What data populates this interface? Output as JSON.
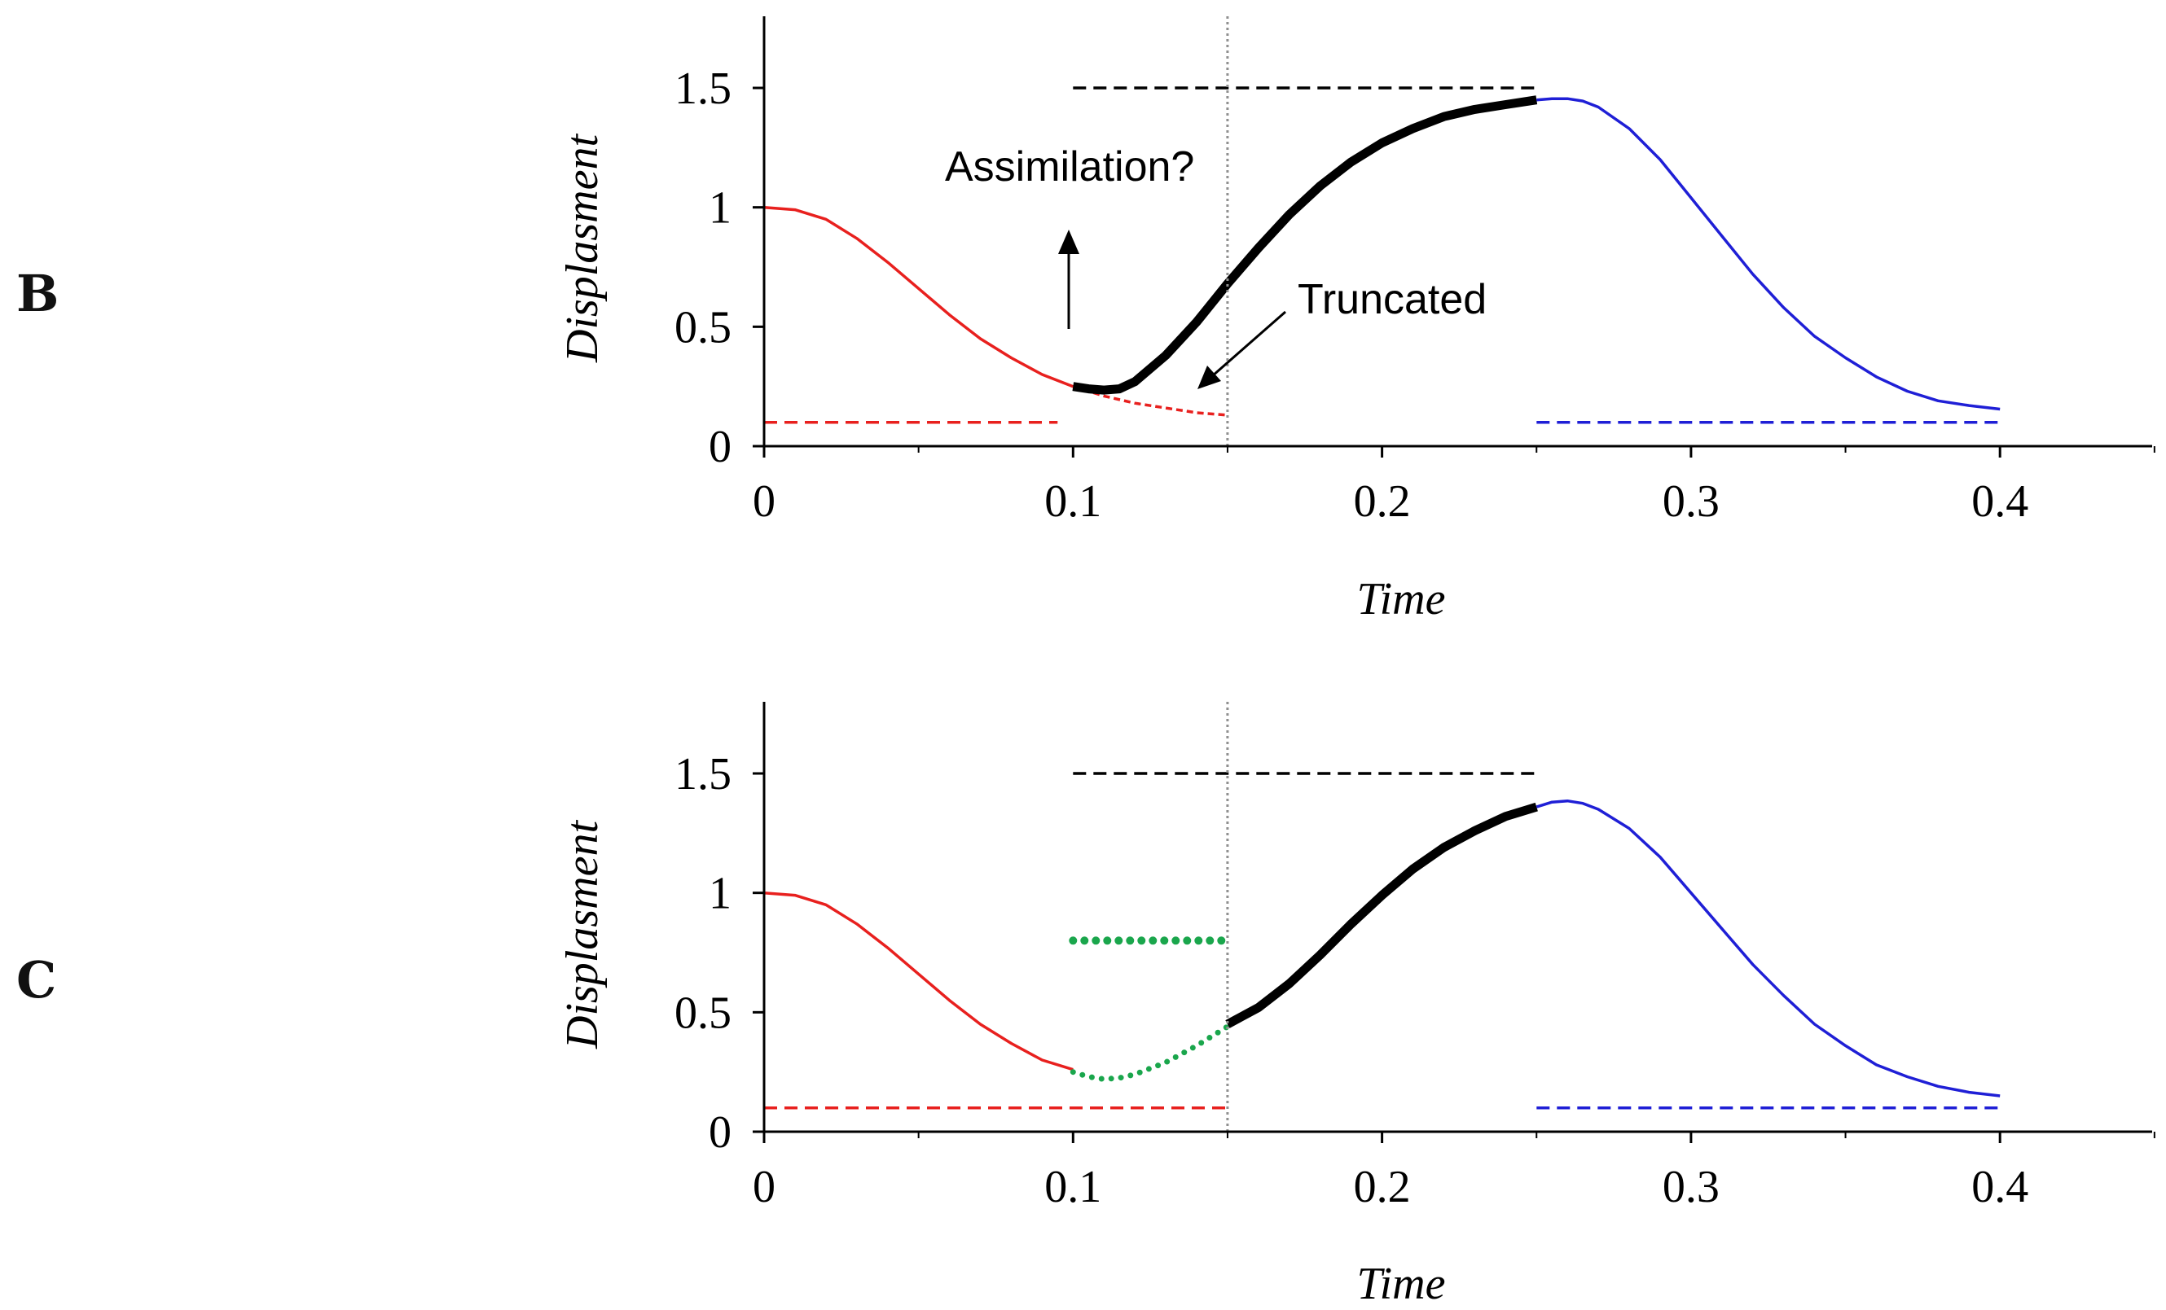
{
  "chart_data": [
    {
      "panel": "B",
      "type": "line",
      "xlabel": "Time",
      "ylabel": "Displasment",
      "xlim": [
        0,
        0.45
      ],
      "ylim": [
        0,
        1.8
      ],
      "xticks": [
        "0",
        "0.1",
        "0.2",
        "0.3",
        "0.4"
      ],
      "yticks": [
        "0",
        "0.5",
        "1",
        "1.5"
      ],
      "series": [
        {
          "style": "solid",
          "color": "#e8201e",
          "x": [
            0,
            0.01,
            0.02,
            0.03,
            0.04,
            0.05,
            0.06,
            0.07,
            0.08,
            0.09,
            0.1
          ],
          "y": [
            1.0,
            0.99,
            0.95,
            0.87,
            0.77,
            0.66,
            0.55,
            0.45,
            0.37,
            0.3,
            0.25
          ]
        },
        {
          "style": "dashed",
          "color": "#e8201e",
          "x": [
            0.1,
            0.11,
            0.12,
            0.13,
            0.14,
            0.15
          ],
          "y": [
            0.25,
            0.21,
            0.18,
            0.16,
            0.14,
            0.13
          ]
        },
        {
          "style": "thick",
          "color": "#000000",
          "x": [
            0.1,
            0.105,
            0.11,
            0.115,
            0.12,
            0.13,
            0.14,
            0.15,
            0.16,
            0.17,
            0.18,
            0.19,
            0.2,
            0.21,
            0.22,
            0.23,
            0.24,
            0.25
          ],
          "y": [
            0.25,
            0.24,
            0.235,
            0.24,
            0.27,
            0.38,
            0.52,
            0.68,
            0.83,
            0.97,
            1.09,
            1.19,
            1.27,
            1.33,
            1.38,
            1.41,
            1.43,
            1.45
          ]
        },
        {
          "style": "solid",
          "color": "#1f1fd6",
          "x": [
            0.25,
            0.255,
            0.26,
            0.265,
            0.27,
            0.28,
            0.29,
            0.3,
            0.31,
            0.32,
            0.33,
            0.34,
            0.35,
            0.36,
            0.37,
            0.38,
            0.39,
            0.4
          ],
          "y": [
            1.45,
            1.455,
            1.455,
            1.445,
            1.42,
            1.33,
            1.2,
            1.04,
            0.88,
            0.72,
            0.58,
            0.46,
            0.37,
            0.29,
            0.23,
            0.19,
            0.17,
            0.155
          ]
        },
        {
          "style": "hline-dashed",
          "color": "#e8201e",
          "x": [
            0,
            0.095
          ],
          "y": [
            0.1,
            0.1
          ]
        },
        {
          "style": "hline-dashed",
          "color": "#1f1fd6",
          "x": [
            0.25,
            0.4
          ],
          "y": [
            0.1,
            0.1
          ]
        },
        {
          "style": "hline-dashed",
          "color": "#000000",
          "x": [
            0.1,
            0.25
          ],
          "y": [
            1.5,
            1.5
          ]
        },
        {
          "style": "vline-dotted",
          "color": "#909090",
          "x": [
            0.15,
            0.15
          ],
          "y": [
            0,
            1.8
          ]
        }
      ],
      "annotations": [
        {
          "text": "Assimilation?",
          "x": 0.1,
          "y": 1.18
        },
        {
          "text": "Truncated",
          "x": 0.175,
          "y": 0.6
        }
      ]
    },
    {
      "panel": "C",
      "type": "line",
      "xlabel": "Time",
      "ylabel": "Displasment",
      "xlim": [
        0,
        0.45
      ],
      "ylim": [
        0,
        1.8
      ],
      "xticks": [
        "0",
        "0.1",
        "0.2",
        "0.3",
        "0.4"
      ],
      "yticks": [
        "0",
        "0.5",
        "1",
        "1.5"
      ],
      "series": [
        {
          "style": "solid",
          "color": "#e8201e",
          "x": [
            0,
            0.01,
            0.02,
            0.03,
            0.04,
            0.05,
            0.06,
            0.07,
            0.08,
            0.09,
            0.1
          ],
          "y": [
            1.0,
            0.99,
            0.95,
            0.87,
            0.77,
            0.66,
            0.55,
            0.45,
            0.37,
            0.3,
            0.26
          ]
        },
        {
          "style": "dotted",
          "color": "#1aa64c",
          "x": [
            0.1,
            0.105,
            0.11,
            0.115,
            0.12,
            0.13,
            0.14,
            0.15
          ],
          "y": [
            0.25,
            0.23,
            0.22,
            0.225,
            0.24,
            0.29,
            0.36,
            0.44
          ]
        },
        {
          "style": "thick",
          "color": "#000000",
          "x": [
            0.15,
            0.16,
            0.17,
            0.18,
            0.19,
            0.2,
            0.21,
            0.22,
            0.23,
            0.24,
            0.25
          ],
          "y": [
            0.45,
            0.52,
            0.62,
            0.74,
            0.87,
            0.99,
            1.1,
            1.19,
            1.26,
            1.32,
            1.36
          ]
        },
        {
          "style": "solid",
          "color": "#1f1fd6",
          "x": [
            0.25,
            0.255,
            0.26,
            0.265,
            0.27,
            0.28,
            0.29,
            0.3,
            0.31,
            0.32,
            0.33,
            0.34,
            0.35,
            0.36,
            0.37,
            0.38,
            0.39,
            0.4
          ],
          "y": [
            1.36,
            1.38,
            1.385,
            1.375,
            1.35,
            1.27,
            1.15,
            1.0,
            0.85,
            0.7,
            0.57,
            0.45,
            0.36,
            0.28,
            0.23,
            0.19,
            0.165,
            0.15
          ]
        },
        {
          "style": "hline-dotted-thick",
          "color": "#1aa64c",
          "x": [
            0.1,
            0.15
          ],
          "y": [
            0.8,
            0.8
          ]
        },
        {
          "style": "hline-dashed",
          "color": "#e8201e",
          "x": [
            0,
            0.15
          ],
          "y": [
            0.1,
            0.1
          ]
        },
        {
          "style": "hline-dashed",
          "color": "#1f1fd6",
          "x": [
            0.25,
            0.4
          ],
          "y": [
            0.1,
            0.1
          ]
        },
        {
          "style": "hline-dashed",
          "color": "#000000",
          "x": [
            0.1,
            0.25
          ],
          "y": [
            1.5,
            1.5
          ]
        },
        {
          "style": "vline-dotted",
          "color": "#909090",
          "x": [
            0.15,
            0.15
          ],
          "y": [
            0,
            1.8
          ]
        }
      ],
      "annotations": []
    }
  ]
}
